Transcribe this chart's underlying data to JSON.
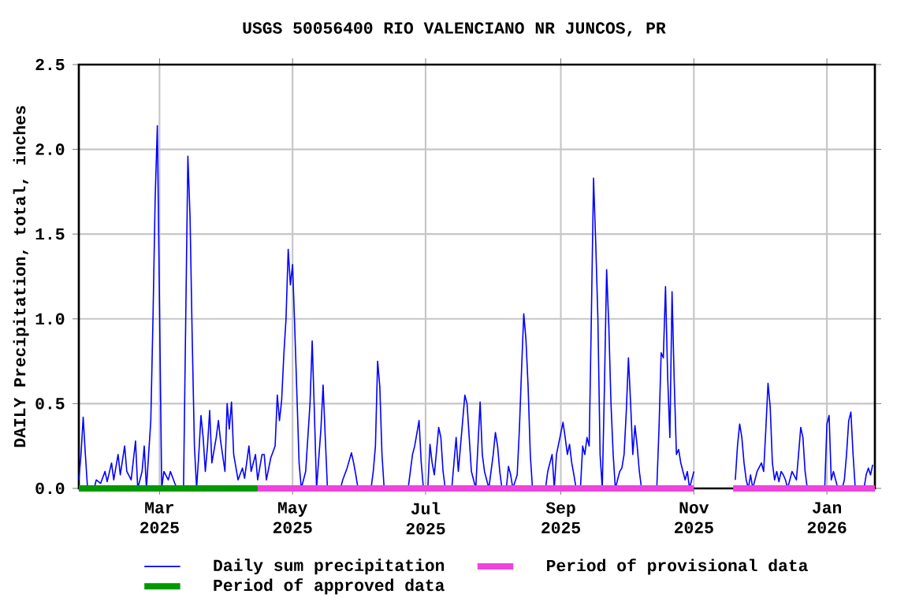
{
  "chart_data": {
    "type": "line",
    "title": "USGS 50056400 RIO VALENCIANO NR JUNCOS, PR",
    "ylabel": "DAILY Precipitation, total, inches",
    "xlim": [
      "2025-01-23",
      "2026-01-23"
    ],
    "xticks": [
      {
        "value": "2025-03-01",
        "label": "Mar 2025"
      },
      {
        "value": "2025-05-01",
        "label": "May 2025"
      },
      {
        "value": "2025-07-01",
        "label": "Jul 2025"
      },
      {
        "value": "2025-09-01",
        "label": "Sep 2025"
      },
      {
        "value": "2025-11-01",
        "label": "Nov 2025"
      },
      {
        "value": "2026-01-01",
        "label": "Jan 2026"
      }
    ],
    "ylim": [
      0,
      2.5
    ],
    "yticks": [
      {
        "value": 0,
        "label": "0.0"
      },
      {
        "value": 0.5,
        "label": "0.5"
      },
      {
        "value": 1,
        "label": "1.0"
      },
      {
        "value": 1.5,
        "label": "1.5"
      },
      {
        "value": 2,
        "label": "2.0"
      },
      {
        "value": 2.5,
        "label": "2.5"
      }
    ],
    "grid": true,
    "legend": "bottom",
    "series": [
      {
        "name": "Daily sum precipitation",
        "color": "#0000ff",
        "x": [
          "2025-01-23",
          "2025-01-24",
          "2025-01-25",
          "2025-01-26",
          "2025-01-27",
          "2025-01-30",
          "2025-01-31",
          "2025-02-02",
          "2025-02-04",
          "2025-02-05",
          "2025-02-07",
          "2025-02-08",
          "2025-02-10",
          "2025-02-11",
          "2025-02-13",
          "2025-02-14",
          "2025-02-16",
          "2025-02-18",
          "2025-02-19",
          "2025-02-21",
          "2025-02-22",
          "2025-02-23",
          "2025-02-25",
          "2025-02-26",
          "2025-02-27",
          "2025-02-28",
          "2025-03-01",
          "2025-03-02",
          "2025-03-03",
          "2025-03-05",
          "2025-03-06",
          "2025-03-08",
          "2025-03-09",
          "2025-03-12",
          "2025-03-13",
          "2025-03-14",
          "2025-03-15",
          "2025-03-16",
          "2025-03-17",
          "2025-03-18",
          "2025-03-19",
          "2025-03-20",
          "2025-03-21",
          "2025-03-22",
          "2025-03-23",
          "2025-03-24",
          "2025-03-25",
          "2025-03-27",
          "2025-03-28",
          "2025-03-29",
          "2025-03-31",
          "2025-04-01",
          "2025-04-02",
          "2025-04-03",
          "2025-04-04",
          "2025-04-06",
          "2025-04-08",
          "2025-04-09",
          "2025-04-11",
          "2025-04-12",
          "2025-04-14",
          "2025-04-15",
          "2025-04-17",
          "2025-04-18",
          "2025-04-19",
          "2025-04-21",
          "2025-04-23",
          "2025-04-24",
          "2025-04-25",
          "2025-04-26",
          "2025-04-27",
          "2025-04-28",
          "2025-04-29",
          "2025-04-30",
          "2025-05-01",
          "2025-05-02",
          "2025-05-03",
          "2025-05-04",
          "2025-05-05",
          "2025-05-07",
          "2025-05-09",
          "2025-05-10",
          "2025-05-11",
          "2025-05-12",
          "2025-05-14",
          "2025-05-15",
          "2025-05-16",
          "2025-05-17",
          "2025-05-23",
          "2025-05-24",
          "2025-05-26",
          "2025-05-28",
          "2025-05-29",
          "2025-05-30",
          "2025-05-31",
          "2025-06-06",
          "2025-06-07",
          "2025-06-08",
          "2025-06-09",
          "2025-06-10",
          "2025-06-11",
          "2025-06-12",
          "2025-06-23",
          "2025-06-24",
          "2025-06-25",
          "2025-06-26",
          "2025-06-28",
          "2025-06-29",
          "2025-06-30",
          "2025-07-02",
          "2025-07-03",
          "2025-07-04",
          "2025-07-05",
          "2025-07-07",
          "2025-07-08",
          "2025-07-09",
          "2025-07-10",
          "2025-07-13",
          "2025-07-14",
          "2025-07-15",
          "2025-07-16",
          "2025-07-18",
          "2025-07-19",
          "2025-07-20",
          "2025-07-21",
          "2025-07-22",
          "2025-07-24",
          "2025-07-26",
          "2025-07-27",
          "2025-07-28",
          "2025-07-30",
          "2025-07-31",
          "2025-08-01",
          "2025-08-02",
          "2025-08-03",
          "2025-08-04",
          "2025-08-05",
          "2025-08-07",
          "2025-08-08",
          "2025-08-09",
          "2025-08-10",
          "2025-08-12",
          "2025-08-13",
          "2025-08-14",
          "2025-08-15",
          "2025-08-16",
          "2025-08-17",
          "2025-08-18",
          "2025-08-19",
          "2025-08-25",
          "2025-08-26",
          "2025-08-27",
          "2025-08-28",
          "2025-08-29",
          "2025-08-30",
          "2025-09-02",
          "2025-09-03",
          "2025-09-04",
          "2025-09-05",
          "2025-09-06",
          "2025-09-07",
          "2025-09-08",
          "2025-09-10",
          "2025-09-11",
          "2025-09-12",
          "2025-09-13",
          "2025-09-14",
          "2025-09-15",
          "2025-09-16",
          "2025-09-17",
          "2025-09-18",
          "2025-09-19",
          "2025-09-20",
          "2025-09-21",
          "2025-09-22",
          "2025-09-23",
          "2025-09-24",
          "2025-09-25",
          "2025-09-26",
          "2025-09-28",
          "2025-09-29",
          "2025-09-30",
          "2025-10-01",
          "2025-10-02",
          "2025-10-03",
          "2025-10-04",
          "2025-10-05",
          "2025-10-06",
          "2025-10-07",
          "2025-10-08",
          "2025-10-15",
          "2025-10-16",
          "2025-10-17",
          "2025-10-18",
          "2025-10-19",
          "2025-10-20",
          "2025-10-21",
          "2025-10-22",
          "2025-10-23",
          "2025-10-24",
          "2025-10-25",
          "2025-10-26",
          "2025-10-27",
          "2025-10-28",
          "2025-10-29",
          "2025-10-30",
          "2025-10-31",
          "2025-11-01",
          "2025-11-10",
          "2025-11-20",
          "2025-11-21",
          "2025-11-22",
          "2025-11-23",
          "2025-11-24",
          "2025-11-25",
          "2025-11-26",
          "2025-11-27",
          "2025-11-28",
          "2025-11-29",
          "2025-11-30",
          "2025-12-02",
          "2025-12-03",
          "2025-12-04",
          "2025-12-05",
          "2025-12-06",
          "2025-12-07",
          "2025-12-08",
          "2025-12-09",
          "2025-12-10",
          "2025-12-11",
          "2025-12-12",
          "2025-12-13",
          "2025-12-14",
          "2025-12-15",
          "2025-12-16",
          "2025-12-18",
          "2025-12-19",
          "2025-12-20",
          "2025-12-21",
          "2025-12-22",
          "2025-12-23",
          "2025-12-31",
          "2026-01-01",
          "2026-01-02",
          "2026-01-03",
          "2026-01-04",
          "2026-01-05",
          "2026-01-06",
          "2026-01-08",
          "2026-01-09",
          "2026-01-10",
          "2026-01-11",
          "2026-01-12",
          "2026-01-13",
          "2026-01-14",
          "2026-01-18",
          "2026-01-19",
          "2026-01-20",
          "2026-01-21",
          "2026-01-22"
        ],
        "values": [
          0.05,
          0.2,
          0.42,
          0.2,
          0,
          0,
          0.05,
          0.03,
          0.1,
          0.04,
          0.15,
          0.05,
          0.2,
          0.08,
          0.25,
          0.1,
          0.05,
          0.28,
          0,
          0.1,
          0.25,
          0,
          0.4,
          1.0,
          1.71,
          2.14,
          1.08,
          0,
          0.1,
          0.05,
          0.1,
          0.03,
          0,
          0,
          0.98,
          1.96,
          1.6,
          0.88,
          0.25,
          0,
          0.2,
          0.43,
          0.3,
          0.1,
          0.25,
          0.46,
          0.15,
          0.3,
          0.4,
          0.28,
          0.1,
          0.5,
          0.35,
          0.51,
          0.2,
          0.05,
          0.12,
          0.06,
          0.25,
          0.1,
          0.2,
          0.05,
          0.2,
          0.2,
          0.05,
          0.18,
          0.25,
          0.55,
          0.4,
          0.52,
          0.79,
          1.0,
          1.41,
          1.2,
          1.32,
          0.95,
          0.55,
          0.15,
          0,
          0.1,
          0.5,
          0.87,
          0.45,
          0,
          0.35,
          0.61,
          0.3,
          0,
          0,
          0.05,
          0.12,
          0.21,
          0.15,
          0.08,
          0,
          0,
          0.1,
          0.25,
          0.75,
          0.6,
          0.2,
          0,
          0,
          0.1,
          0.2,
          0.25,
          0.4,
          0.15,
          0,
          0,
          0.26,
          0.15,
          0.08,
          0.36,
          0.3,
          0.1,
          0,
          0,
          0.15,
          0.3,
          0.1,
          0.4,
          0.55,
          0.5,
          0.3,
          0.1,
          0,
          0.51,
          0.2,
          0.1,
          0,
          0.1,
          0.2,
          0.33,
          0.25,
          0.1,
          0,
          0,
          0.13,
          0.08,
          0,
          0.08,
          0.35,
          0.7,
          1.03,
          0.88,
          0.6,
          0.2,
          0,
          0,
          0.1,
          0.15,
          0.2,
          0,
          0.2,
          0.39,
          0.3,
          0.2,
          0.26,
          0.15,
          0.08,
          0,
          0,
          0.25,
          0.2,
          0.3,
          0.25,
          1.01,
          1.83,
          1.45,
          1.0,
          0.2,
          0,
          0.6,
          1.29,
          0.96,
          0.5,
          0.2,
          0,
          0.1,
          0.12,
          0.2,
          0.45,
          0.77,
          0.5,
          0.2,
          0.37,
          0.25,
          0.1,
          0,
          0,
          0.35,
          0.8,
          0.77,
          1.19,
          0.65,
          0.3,
          1.16,
          0.63,
          0.2,
          0.23,
          0.15,
          0.1,
          0.05,
          0.1,
          0,
          0.05,
          0.1,
          null,
          0.05,
          0.25,
          0.38,
          0.3,
          0.15,
          0.05,
          0,
          0.08,
          0,
          0.05,
          0.1,
          0.15,
          0.1,
          0.35,
          0.62,
          0.48,
          0.15,
          0.05,
          0.1,
          0.04,
          0.1,
          0.08,
          0.05,
          0,
          0.05,
          0.1,
          0.05,
          0.2,
          0.36,
          0.3,
          0.1,
          0,
          0,
          0.38,
          0.43,
          0.05,
          0.1,
          0.05,
          0,
          0,
          0.05,
          0.2,
          0.4,
          0.45,
          0.2,
          0,
          0,
          0.08,
          0.12,
          0.08,
          0.14
        ]
      },
      {
        "name": "Period of provisional data",
        "color": "#ee44dd",
        "x": [
          "2025-04-15",
          "2025-11-01",
          "2025-11-10",
          "2025-11-19",
          "2026-01-23"
        ],
        "values": [
          0,
          0,
          null,
          0,
          0
        ]
      },
      {
        "name": "Period of approved data",
        "color": "#009900",
        "x": [
          "2025-01-23",
          "2025-04-15"
        ],
        "values": [
          0,
          0
        ]
      }
    ]
  }
}
